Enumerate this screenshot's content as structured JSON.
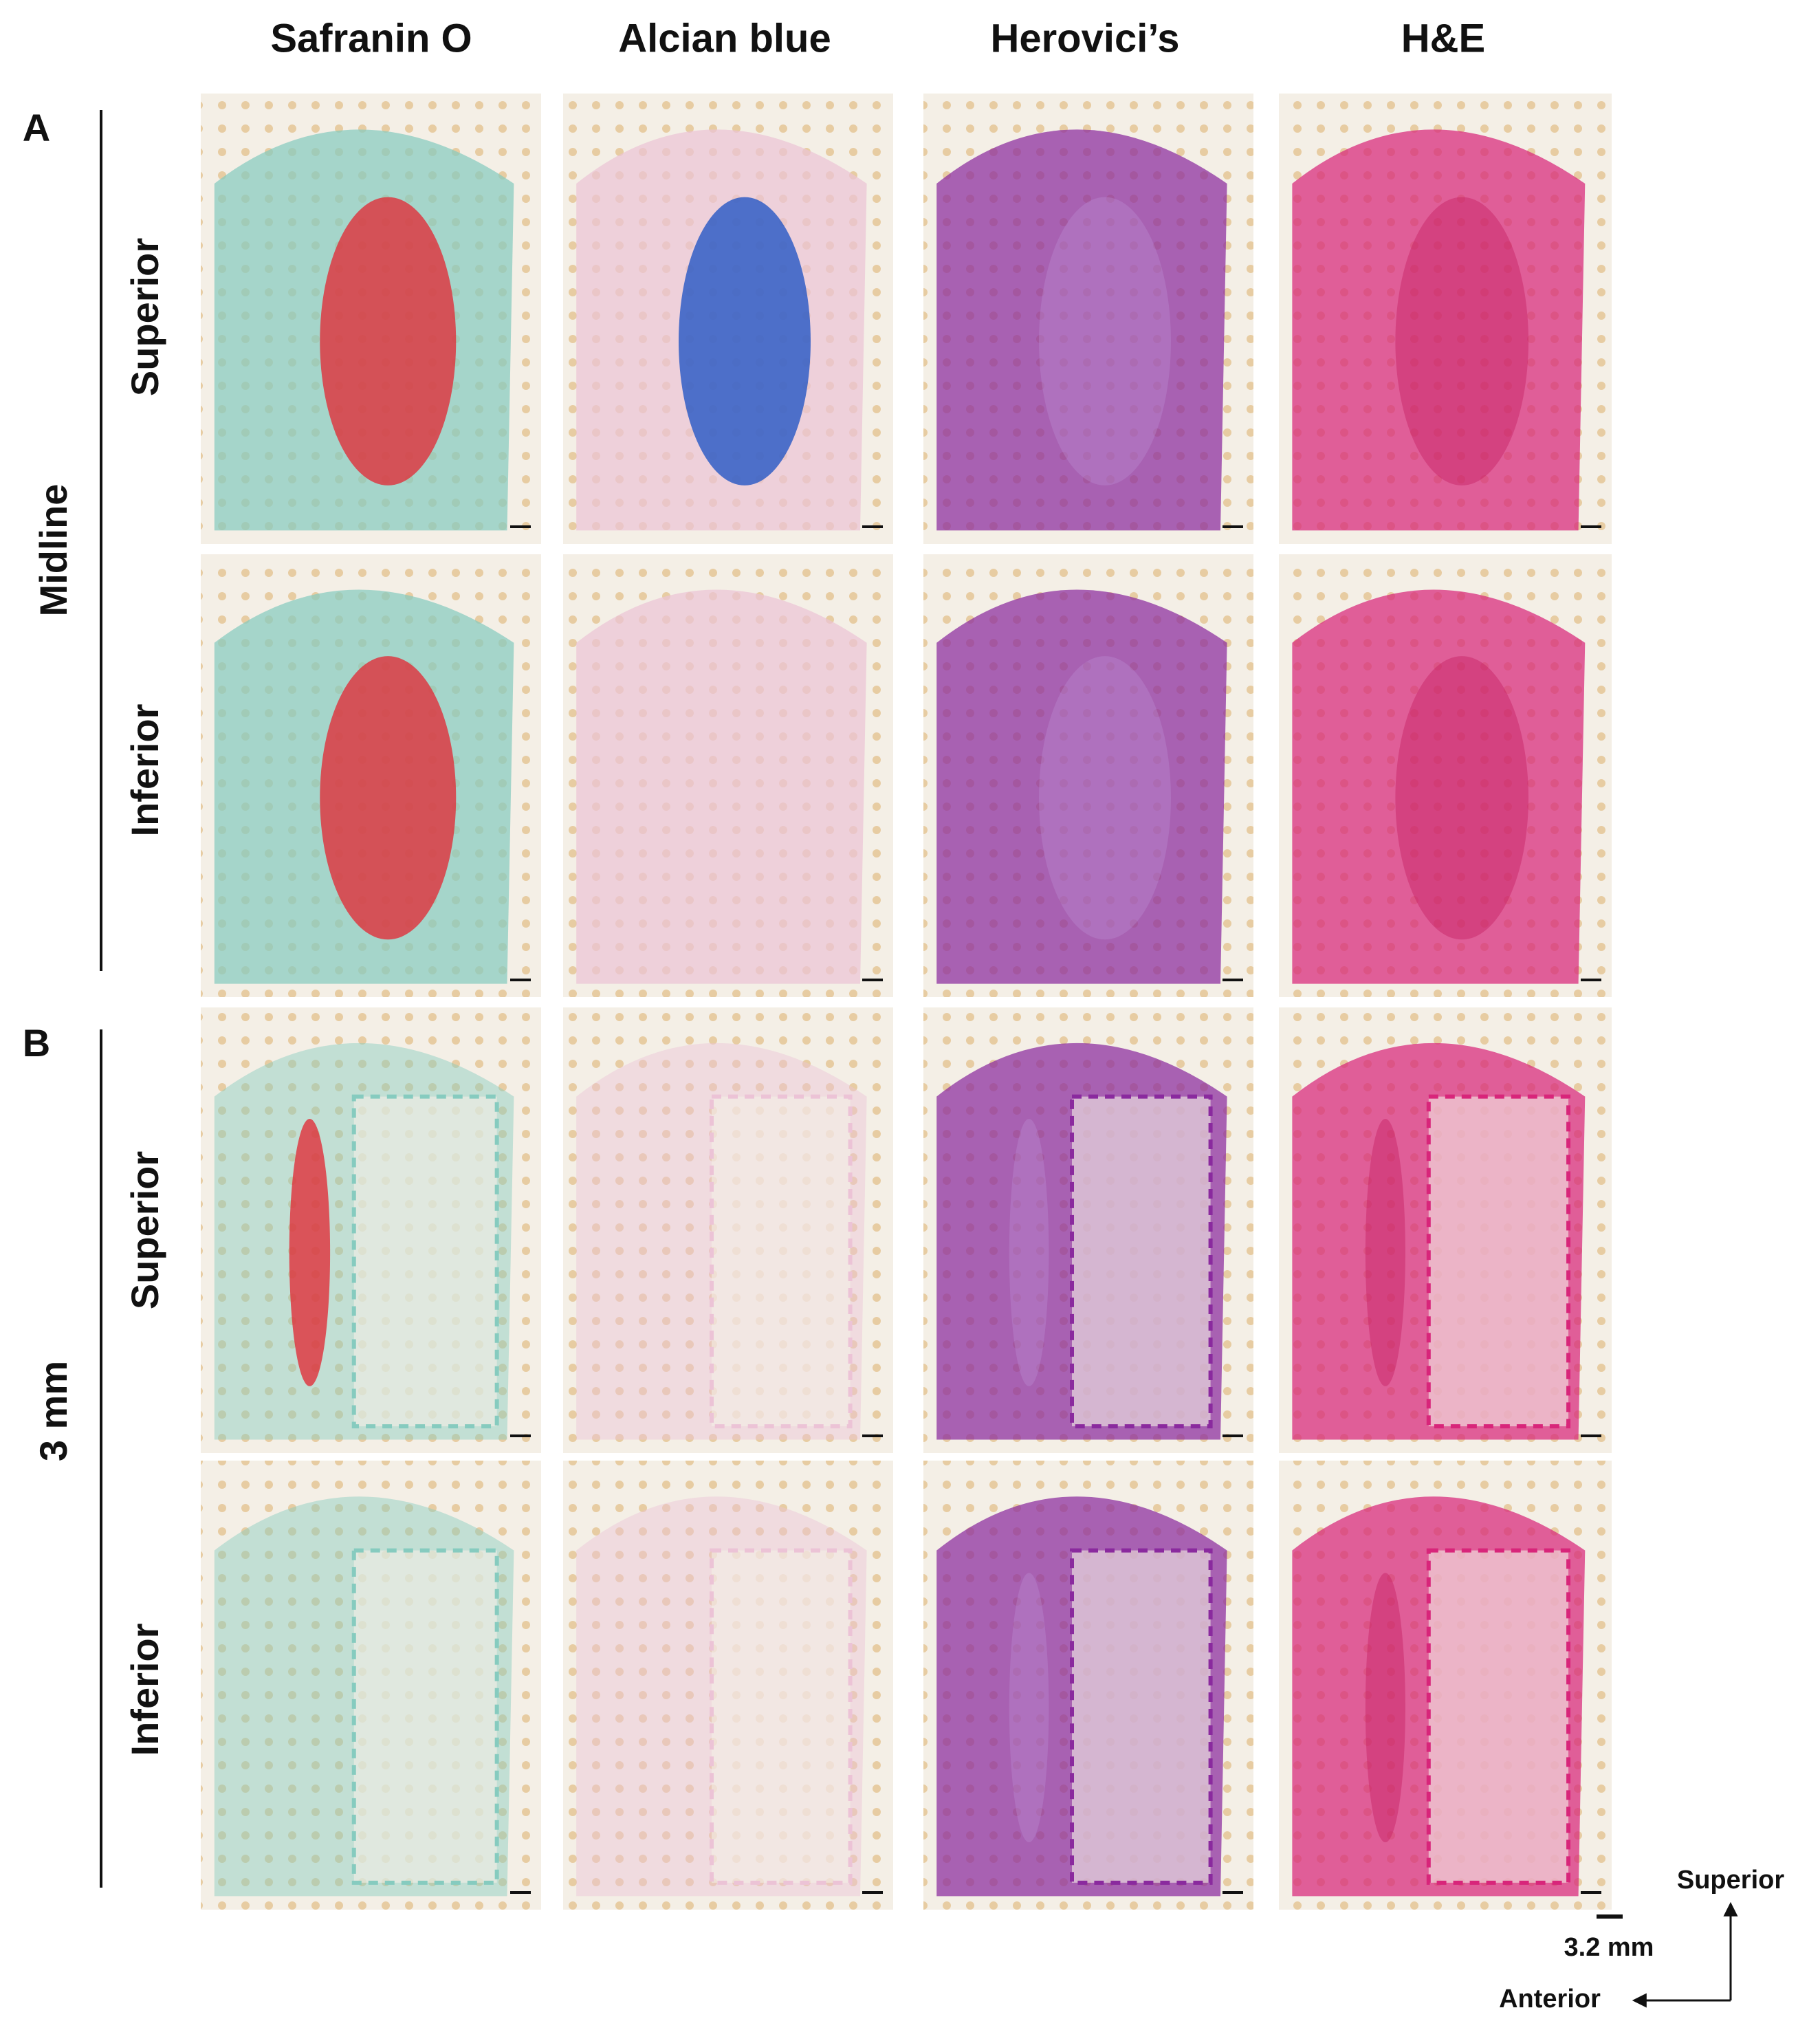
{
  "columns": [
    "Safranin O",
    "Alcian blue",
    "Herovici’s",
    "H&E"
  ],
  "panels": [
    {
      "label": "A",
      "group": "Midline",
      "rows": [
        "Superior",
        "Inferior"
      ]
    },
    {
      "label": "B",
      "group": "3 mm",
      "rows": [
        "Superior",
        "Inferior"
      ]
    }
  ],
  "scale_bar": "3.2 mm",
  "orientation": {
    "vertical": "Superior",
    "horizontal": "Anterior"
  }
}
